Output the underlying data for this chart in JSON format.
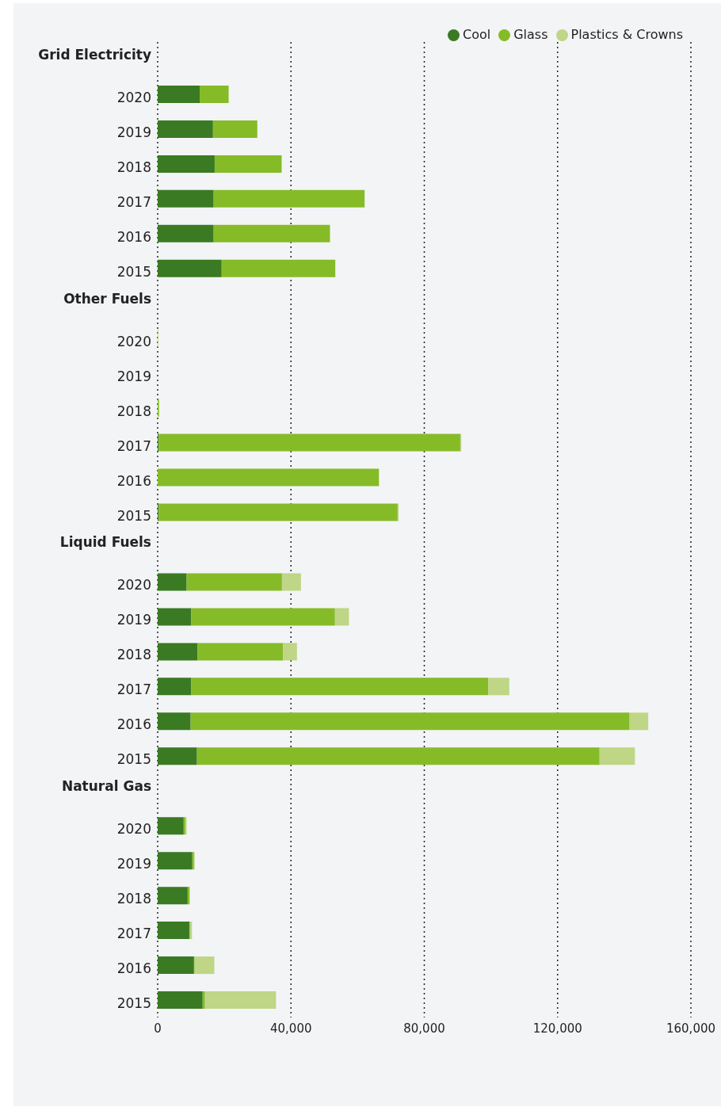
{
  "chart_data": {
    "type": "bar",
    "orientation": "horizontal",
    "stacked": true,
    "grid": "x",
    "legend": "top right",
    "categories": [
      "Grid Electricity",
      "2020",
      "2019",
      "2018",
      "2017",
      "2016",
      "2015",
      "Other Fuels",
      "2020",
      "2019",
      "2018",
      "2017",
      "2016",
      "2015",
      "Liquid Fuels",
      "2020",
      "2019",
      "2018",
      "2017",
      "2016",
      "2015",
      "Natural Gas",
      "2020",
      "2019",
      "2018",
      "2017",
      "2016",
      "2015"
    ],
    "series": [
      {
        "name": "Cool",
        "color": "#3a7a23",
        "values": [
          null,
          12600,
          16600,
          17100,
          16800,
          16800,
          19200,
          null,
          null,
          0,
          null,
          300,
          null,
          300,
          null,
          8700,
          10100,
          12000,
          10100,
          9900,
          11800,
          null,
          7800,
          10400,
          9000,
          9500,
          10900,
          13500
        ]
      },
      {
        "name": "Glass",
        "color": "#86bb28",
        "values": [
          null,
          8700,
          13300,
          20100,
          45300,
          34900,
          34100,
          null,
          null,
          null,
          400,
          90500,
          66400,
          71700,
          null,
          28600,
          43100,
          25600,
          89100,
          131700,
          120800,
          null,
          500,
          500,
          500,
          200,
          200,
          700
        ]
      },
      {
        "name": "Plastics & Crowns",
        "color": "#bed685",
        "values": [
          null,
          null,
          null,
          null,
          null,
          null,
          null,
          null,
          200,
          null,
          null,
          300,
          null,
          300,
          null,
          5700,
          4200,
          4200,
          6300,
          5600,
          10600,
          null,
          400,
          200,
          200,
          600,
          5900,
          21300
        ]
      }
    ],
    "xlim": [
      0,
      160000
    ],
    "xticks": [
      0,
      {
        "value": 40000,
        "label": "40,000"
      },
      {
        "value": 80000,
        "label": "80,000"
      },
      {
        "value": 120000,
        "label": "120,000"
      },
      {
        "value": 160000,
        "label": "160,000"
      }
    ]
  }
}
